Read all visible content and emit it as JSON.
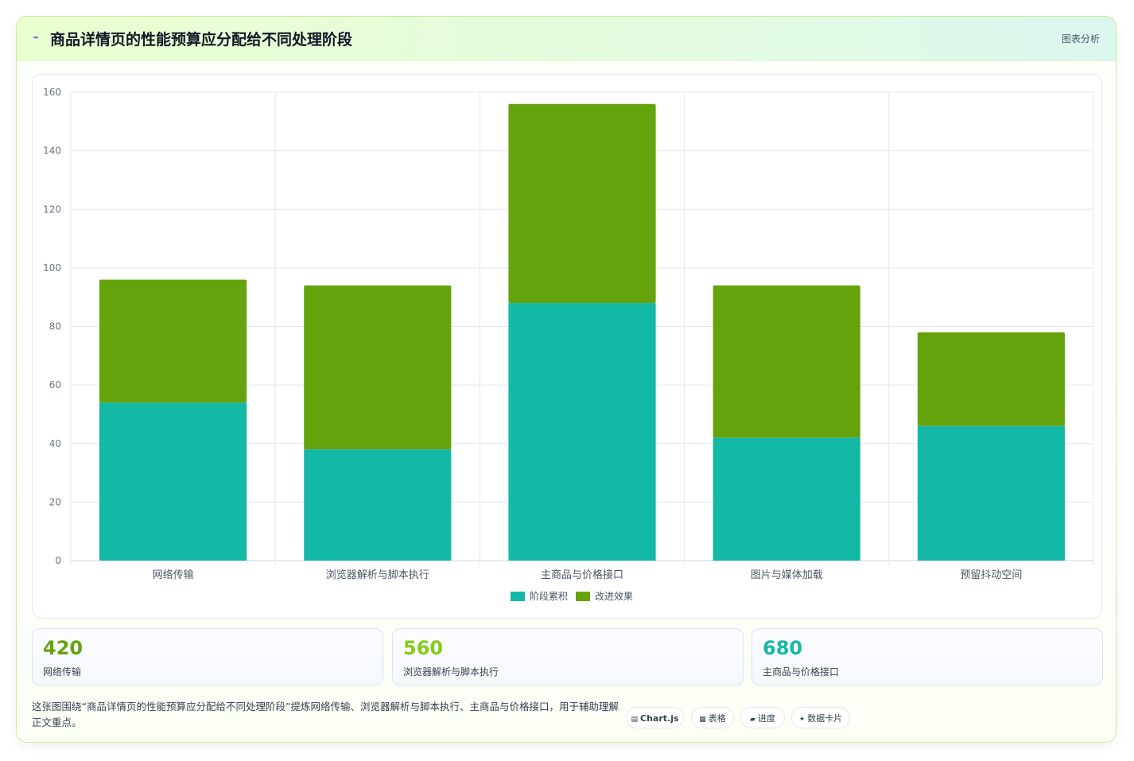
{
  "header": {
    "title": "商品详情页的性能预算应分配给不同处理阶段",
    "tag": "图表分析",
    "logo_icon": "lightning-icon"
  },
  "chart_data": {
    "type": "bar",
    "stacked": true,
    "categories": [
      "网络传输",
      "浏览器解析与脚本执行",
      "主商品与价格接口",
      "图片与媒体加载",
      "预留抖动空间"
    ],
    "series": [
      {
        "name": "阶段累积",
        "color": "#14b8a6",
        "values": [
          54,
          38,
          88,
          42,
          46
        ]
      },
      {
        "name": "改进效果",
        "color": "#65a30d",
        "values": [
          42,
          56,
          68,
          52,
          32
        ]
      }
    ],
    "ylim": [
      0,
      160
    ],
    "yticks": [
      0,
      20,
      40,
      60,
      80,
      100,
      120,
      140,
      160
    ],
    "grid": true,
    "legend_position": "bottom"
  },
  "stats": [
    {
      "value": "420",
      "label": "网络传输",
      "color": "#65a30d"
    },
    {
      "value": "560",
      "label": "浏览器解析与脚本执行",
      "color": "#84cc16"
    },
    {
      "value": "680",
      "label": "主商品与价格接口",
      "color": "#14b8a6"
    }
  ],
  "description": "这张图围绕“商品详情页的性能预算应分配给不同处理阶段”提炼网络传输、浏览器解析与脚本执行、主商品与价格接口，用于辅助理解正文重点。",
  "pills": [
    {
      "icon": "chart-icon",
      "label": "Chart.js"
    },
    {
      "icon": "table-icon",
      "label": "表格"
    },
    {
      "icon": "progress-icon",
      "label": "进度"
    },
    {
      "icon": "sparkle-icon",
      "label": "数据卡片"
    }
  ]
}
